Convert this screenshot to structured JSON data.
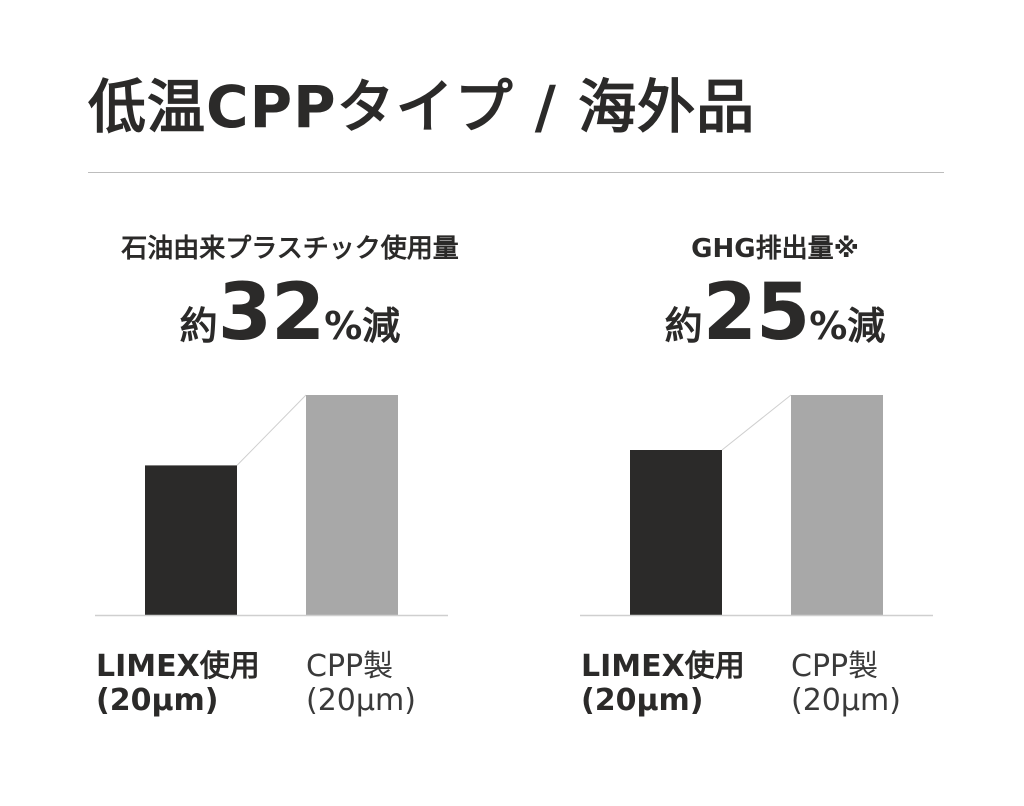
{
  "title": "低温CPPタイプ / 海外品",
  "colors": {
    "dark_bar": "#2b2a29",
    "light_bar": "#a8a8a8",
    "baseline": "#cfcfcf",
    "rule": "#bdbdbd"
  },
  "chart_data": [
    {
      "type": "bar",
      "title": "石油由来プラスチック使用量",
      "headline": {
        "prefix": "約",
        "number": "32",
        "suffix": "%減"
      },
      "categories": [
        "LIMEX使用 (20μm)",
        "CPP製 (20μm)"
      ],
      "category_lines": [
        [
          "LIMEX使用",
          "(20μm)"
        ],
        [
          "CPP製",
          "(20μm)"
        ]
      ],
      "values": [
        68,
        100
      ],
      "ylim": [
        0,
        100
      ],
      "grid": false
    },
    {
      "type": "bar",
      "title": "GHG排出量※",
      "headline": {
        "prefix": "約",
        "number": "25",
        "suffix": "%減"
      },
      "categories": [
        "LIMEX使用 (20μm)",
        "CPP製 (20μm)"
      ],
      "category_lines": [
        [
          "LIMEX使用",
          "(20μm)"
        ],
        [
          "CPP製",
          "(20μm)"
        ]
      ],
      "values": [
        75,
        100
      ],
      "ylim": [
        0,
        100
      ],
      "grid": false
    }
  ]
}
